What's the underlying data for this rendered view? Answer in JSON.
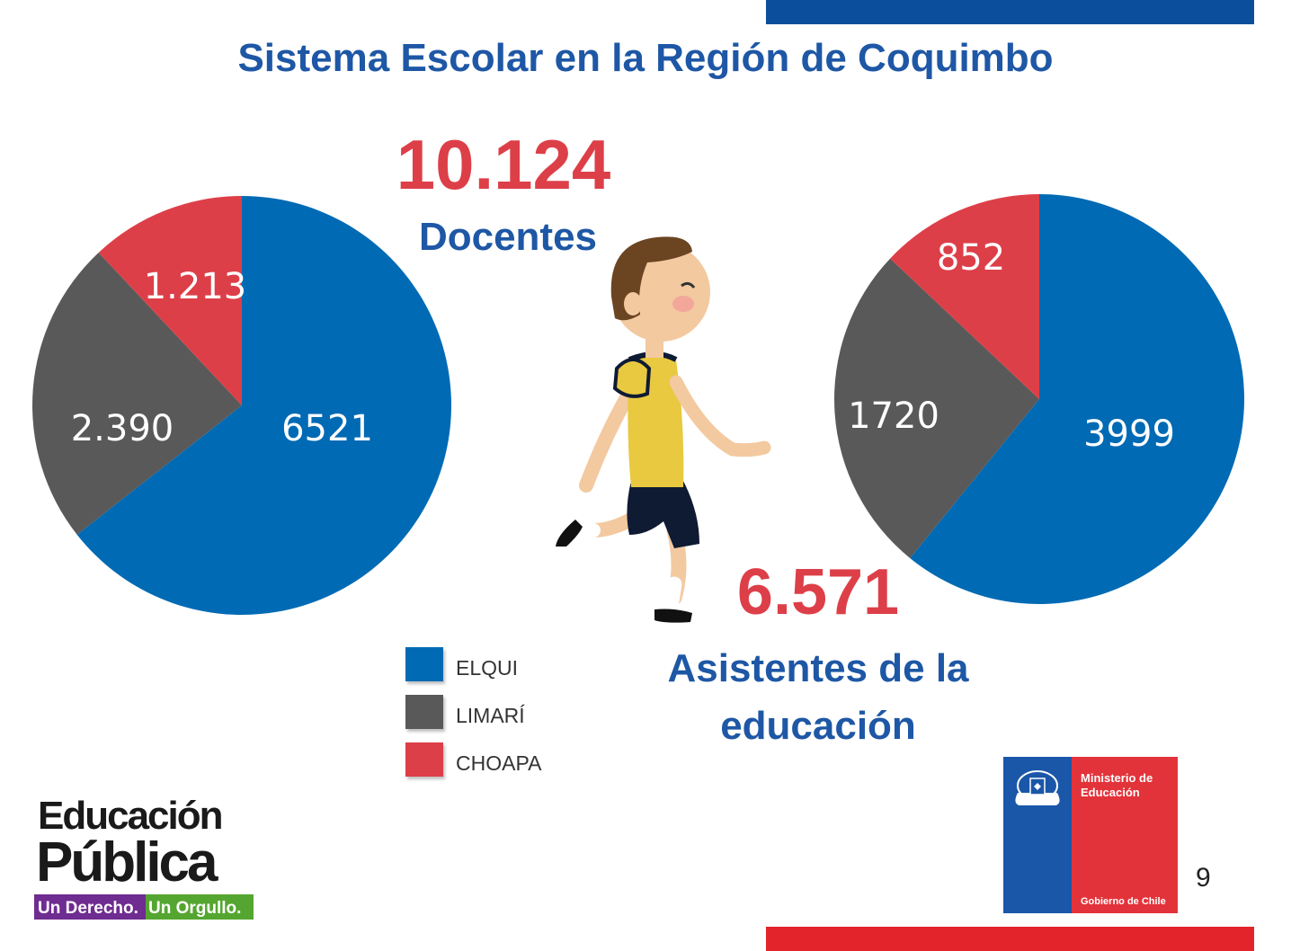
{
  "title": "Sistema Escolar en la Región de Coquimbo",
  "docentes": {
    "total": "10.124",
    "label": "Docentes"
  },
  "asistentes": {
    "total": "6.571",
    "label_line1": "Asistentes de la",
    "label_line2": "educación"
  },
  "colors": {
    "elqui": "#006ab4",
    "limari": "#595959",
    "choapa": "#dd3f48",
    "title": "#1e57a5",
    "accent_red": "#dd3f48"
  },
  "chart_data": [
    {
      "type": "pie",
      "title": "",
      "slices": [
        {
          "label": "ELQUI",
          "value": 6521,
          "display": "6521",
          "color": "#006ab4"
        },
        {
          "label": "LIMARÍ",
          "value": 2390,
          "display": "2.390",
          "color": "#595959"
        },
        {
          "label": "CHOAPA",
          "value": 1213,
          "display": "1.213",
          "color": "#dd3f48"
        }
      ]
    },
    {
      "type": "pie",
      "title": "",
      "slices": [
        {
          "label": "ELQUI",
          "value": 3999,
          "display": "3999",
          "color": "#006ab4"
        },
        {
          "label": "LIMARÍ",
          "value": 1720,
          "display": "1720",
          "color": "#595959"
        },
        {
          "label": "CHOAPA",
          "value": 852,
          "display": "852",
          "color": "#dd3f48"
        }
      ]
    }
  ],
  "legend": [
    {
      "label": "ELQUI",
      "color": "#006ab4"
    },
    {
      "label": "LIMARÍ",
      "color": "#595959"
    },
    {
      "label": "CHOAPA",
      "color": "#dd3f48"
    }
  ],
  "logo_left": {
    "line1": "Educación",
    "line2": "Pública",
    "tag1": "Un Derecho.",
    "tag2": "Un Orgullo."
  },
  "logo_right": {
    "line1": "Ministerio de",
    "line2": "Educación",
    "line3": "Gobierno de Chile"
  },
  "page_number": "9"
}
